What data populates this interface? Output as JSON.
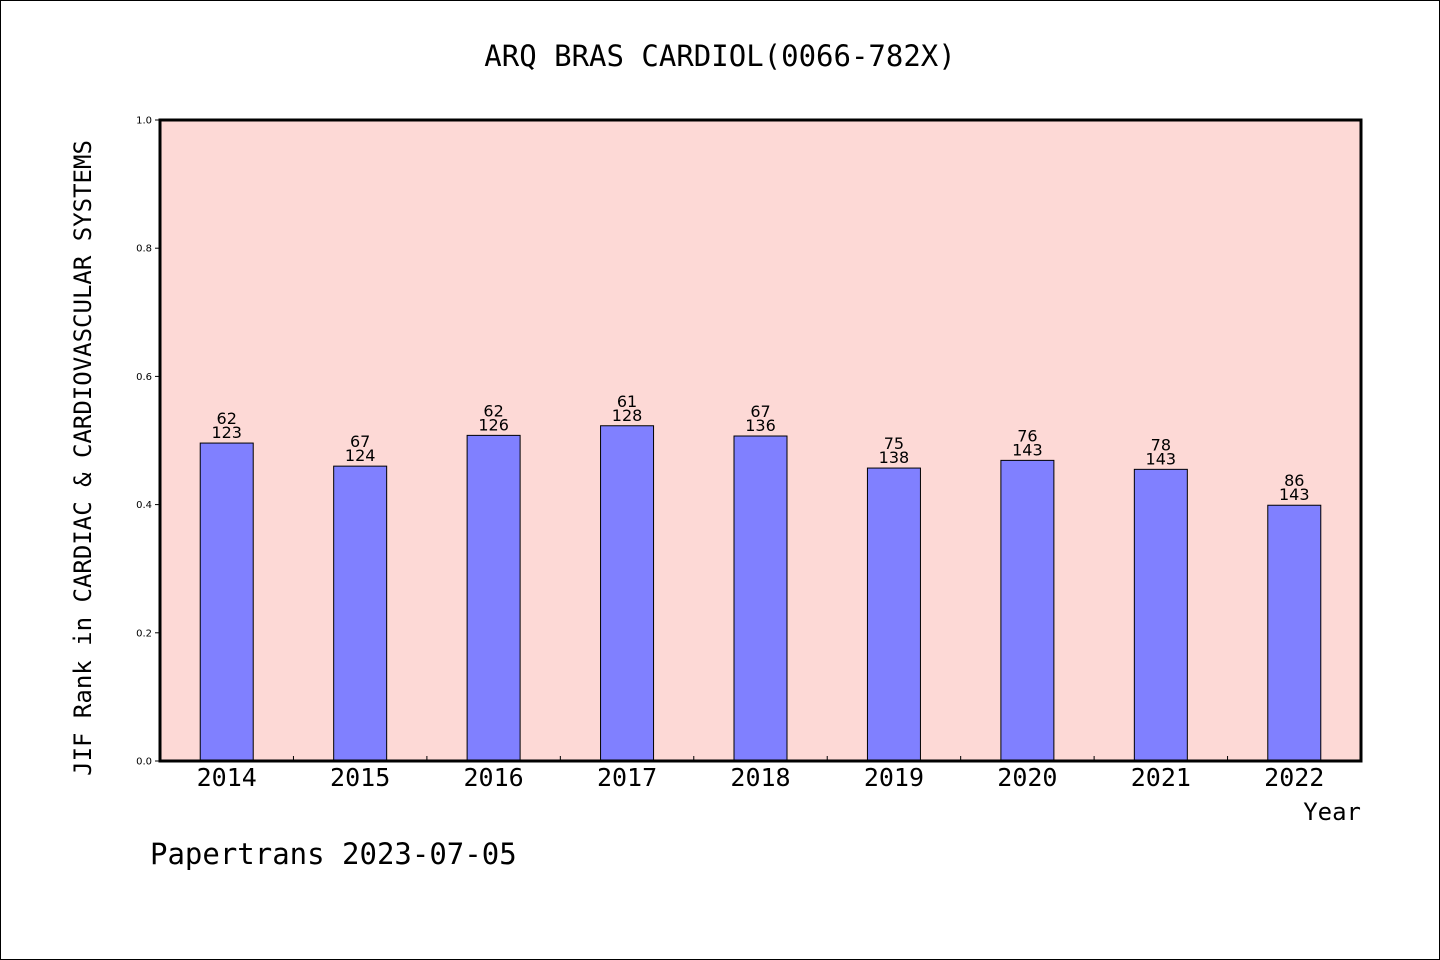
{
  "chart_data": {
    "type": "bar",
    "title": "ARQ BRAS CARDIOL(0066-782X)",
    "xlabel": "Year",
    "ylabel": "JIF Rank in CARDIAC & CARDIOVASCULAR SYSTEMS",
    "ylim": [
      0,
      1.0
    ],
    "yticks": [
      "0.0",
      "0.2",
      "0.4",
      "0.6",
      "0.8",
      "1.0"
    ],
    "categories": [
      "2014",
      "2015",
      "2016",
      "2017",
      "2018",
      "2019",
      "2020",
      "2021",
      "2022"
    ],
    "values": [
      0.496,
      0.46,
      0.508,
      0.523,
      0.507,
      0.457,
      0.469,
      0.455,
      0.399
    ],
    "labels_top": [
      "62",
      "67",
      "62",
      "61",
      "67",
      "75",
      "76",
      "78",
      "86"
    ],
    "labels_bottom": [
      "123",
      "124",
      "126",
      "128",
      "136",
      "138",
      "143",
      "143",
      "143"
    ],
    "grid": false,
    "colors": {
      "plot_background": "#FDD9D6",
      "bar_fill": "#8080FF",
      "bar_stroke": "#000000"
    }
  },
  "footer": {
    "source_stamp": "Papertrans 2023-07-05"
  }
}
